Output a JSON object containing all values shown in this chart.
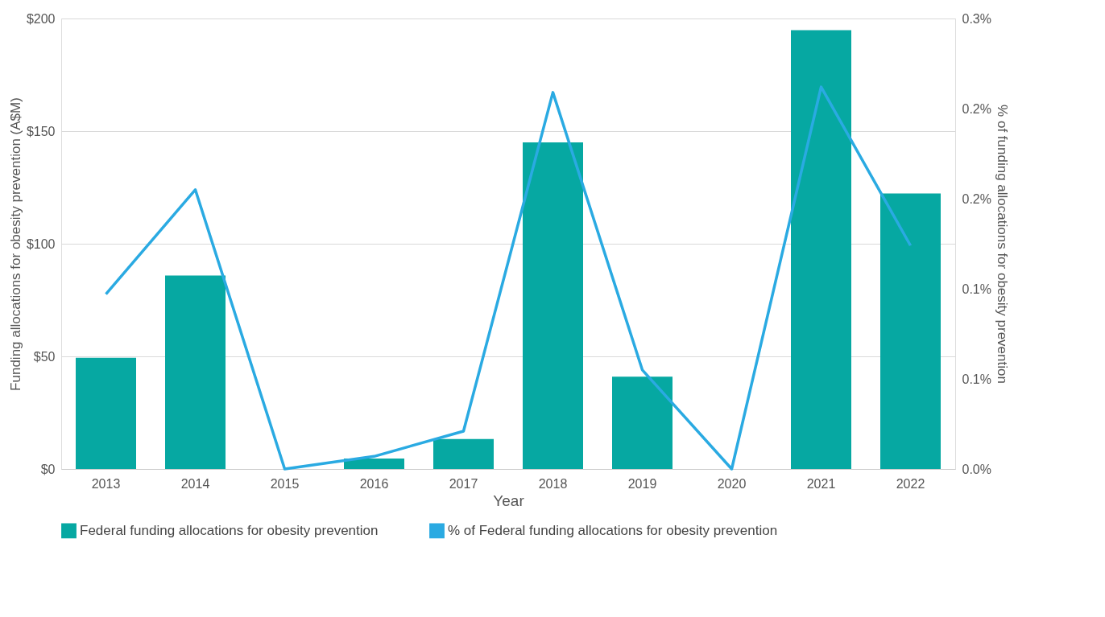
{
  "chart_data": {
    "type": "bar",
    "xlabel": "Year",
    "ylabel": "Funding allocations for obesity prevention (A$M)",
    "y2label": "% of funding allocations for obesity prevention",
    "categories": [
      "2013",
      "2014",
      "2015",
      "2016",
      "2017",
      "2018",
      "2019",
      "2020",
      "2021",
      "2022"
    ],
    "series": [
      {
        "name": "Federal funding allocations for obesity prevention",
        "color": "#06a8a2",
        "values": [
          49.4,
          85.9,
          0,
          4.6,
          13.3,
          145,
          41,
          0,
          194.8,
          122.3
        ]
      },
      {
        "name": "% of Federal funding allocations for obesity prevention",
        "type": "line",
        "axis": "y2",
        "color": "#2aaae2",
        "values": [
          0.097,
          0.155,
          0,
          0.007,
          0.021,
          0.209,
          0.055,
          0,
          0.212,
          0.124
        ]
      }
    ],
    "ylim": [
      0,
      200
    ],
    "yticks": [
      {
        "value": 0,
        "label": "$0"
      },
      {
        "value": 50,
        "label": "$50"
      },
      {
        "value": 100,
        "label": "$100"
      },
      {
        "value": 150,
        "label": "$150"
      },
      {
        "value": 200,
        "label": "$200"
      }
    ],
    "y2lim": [
      0,
      0.25
    ],
    "y2ticks": [
      {
        "value": 0,
        "label": "0.0%"
      },
      {
        "value": 0.05,
        "label": "0.1%"
      },
      {
        "value": 0.1,
        "label": "0.1%"
      },
      {
        "value": 0.15,
        "label": "0.2%"
      },
      {
        "value": 0.2,
        "label": "0.2%"
      },
      {
        "value": 0.25,
        "label": "0.3%"
      }
    ],
    "grid": "y",
    "legend": "bottom"
  }
}
